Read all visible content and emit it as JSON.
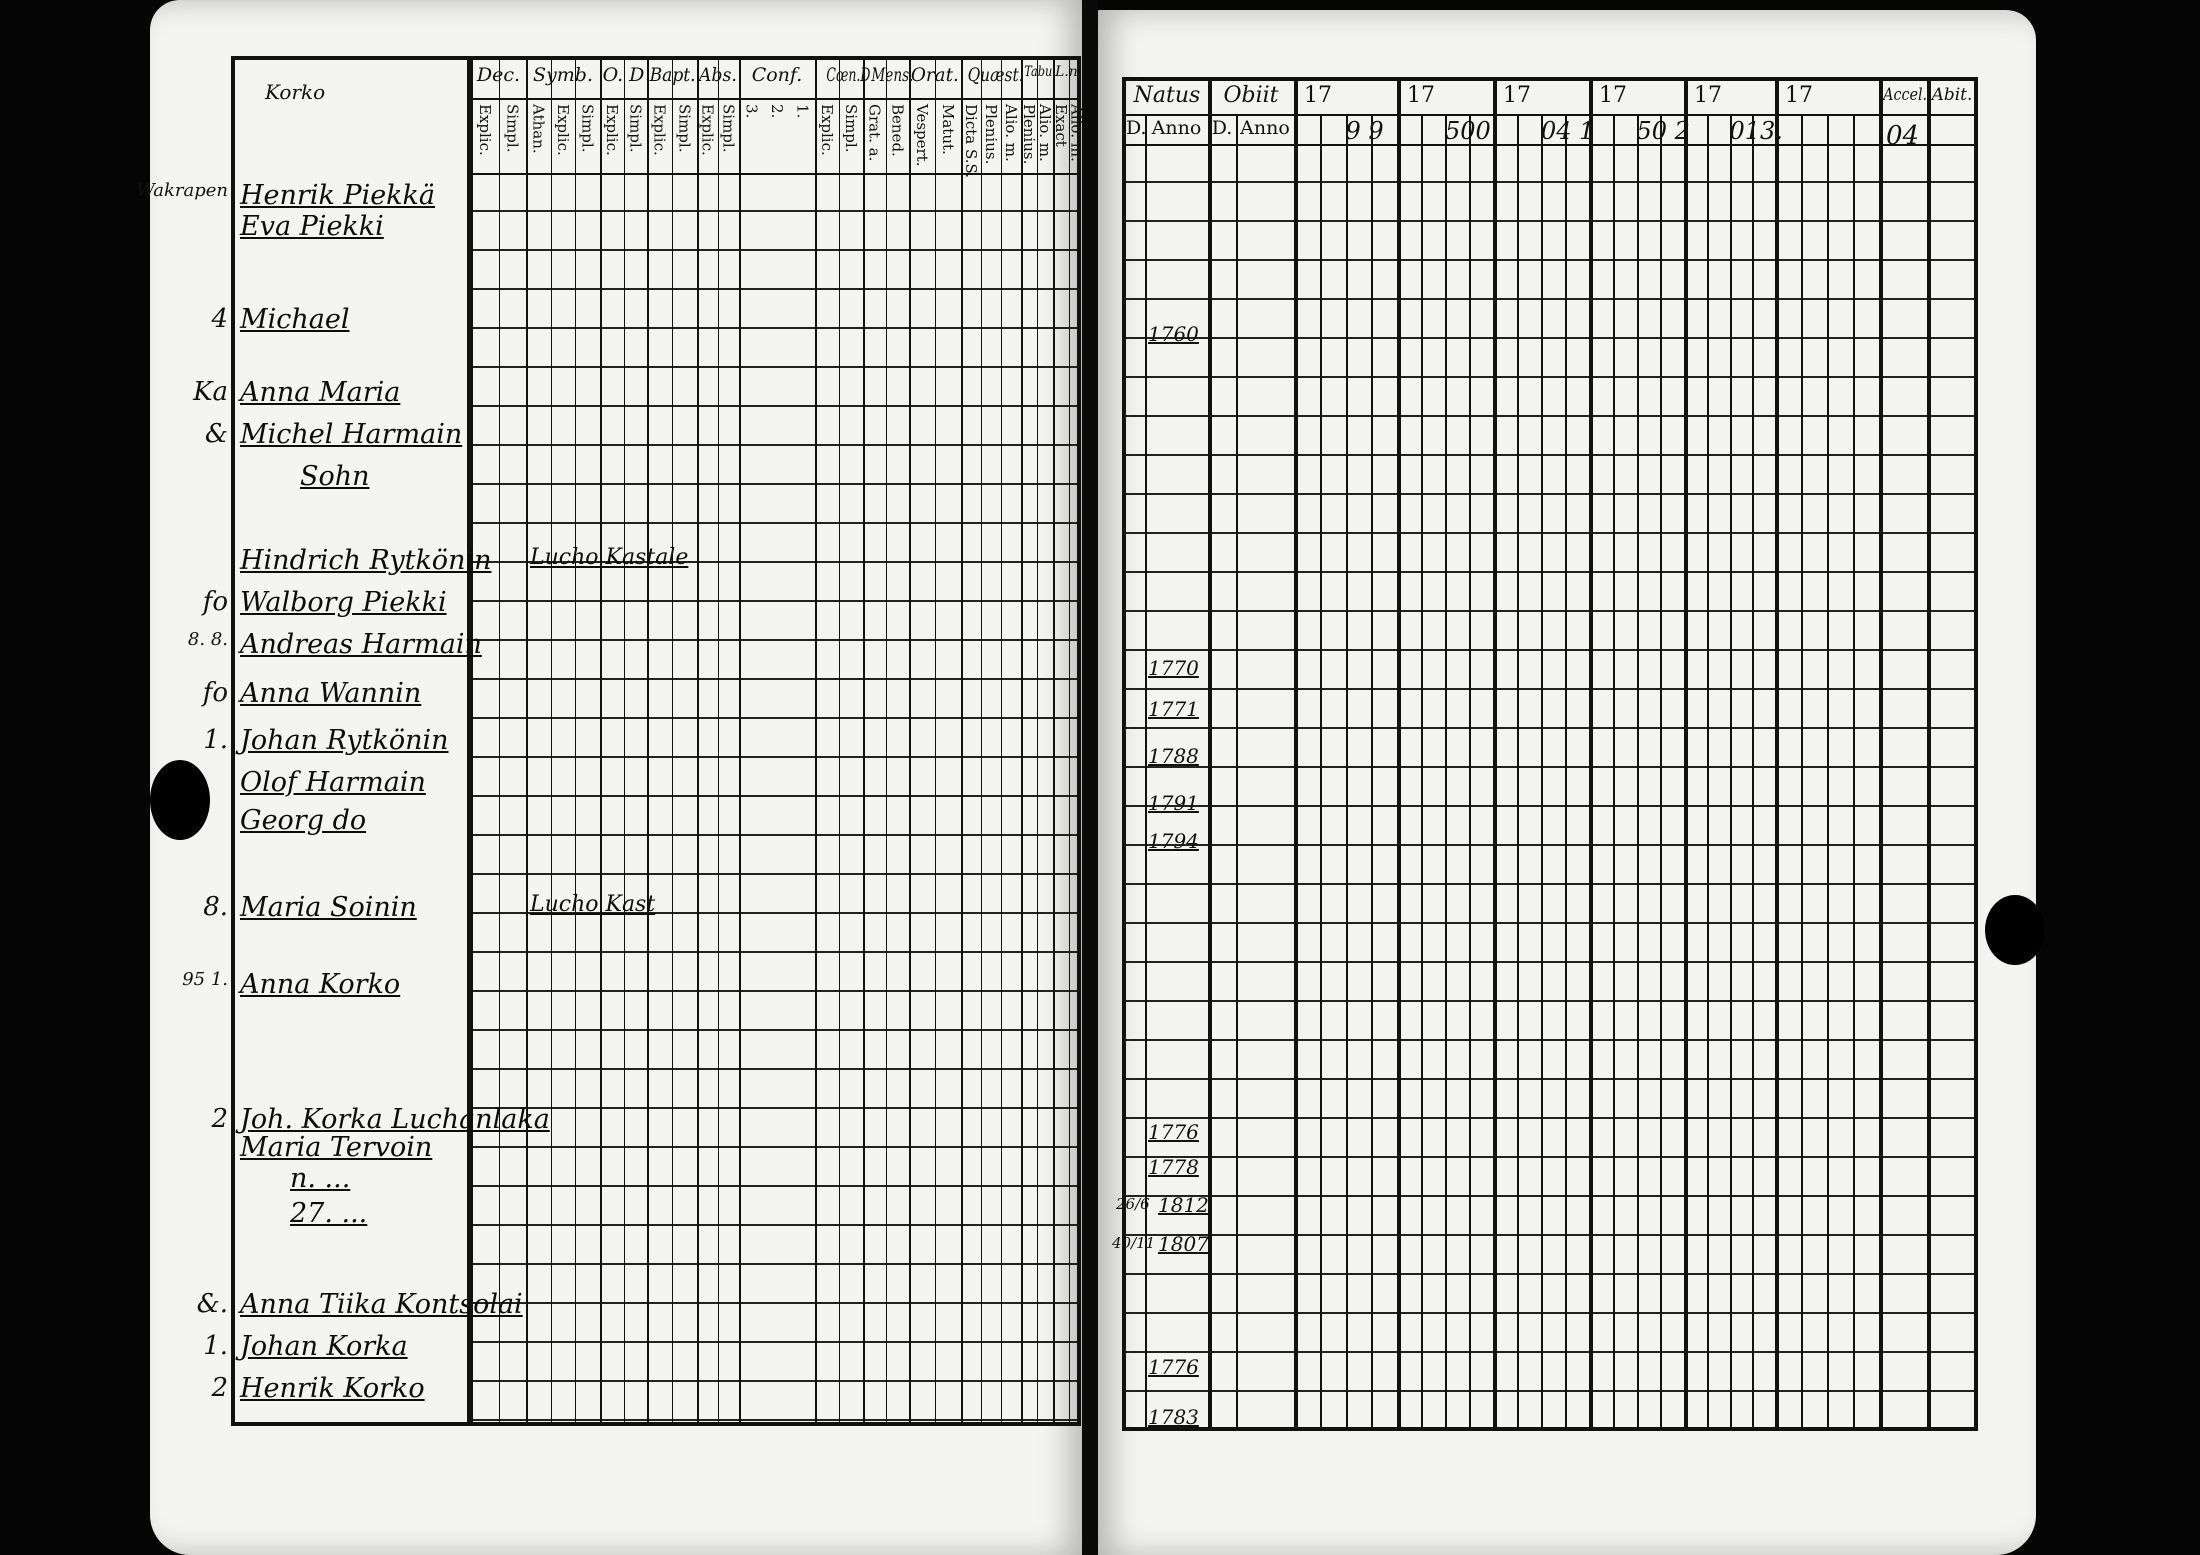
{
  "left_page": {
    "corner_note": "Korko",
    "headers": [
      {
        "label": "Dec.",
        "subs": [
          "Explic.",
          "Simpl."
        ]
      },
      {
        "label": "Symb.",
        "subs": [
          "Athan.",
          "Explic.",
          "Simpl."
        ]
      },
      {
        "label": "O. D",
        "subs": [
          "Explic.",
          "Simpl."
        ]
      },
      {
        "label": "Bapt.",
        "subs": [
          "Explic.",
          "Simpl."
        ]
      },
      {
        "label": "Abs.",
        "subs": [
          "Explic.",
          "Simpl."
        ]
      },
      {
        "label": "Conf.",
        "subs": [
          "3.",
          "2.",
          "1."
        ]
      },
      {
        "label": "Cœn.D",
        "subs": [
          "Explic.",
          "Simpl."
        ]
      },
      {
        "label": "Mens.",
        "subs": [
          "Grat. a.",
          "Bened."
        ]
      },
      {
        "label": "Orat.",
        "subs": [
          "Vespert.",
          "Matut."
        ]
      },
      {
        "label": "Quæst.",
        "subs": [
          "Dicta S.S.",
          "Plenius.",
          "Alio. m."
        ]
      },
      {
        "label": "Tabu",
        "subs": [
          "Plenius.",
          "Alio. m."
        ]
      },
      {
        "label": "L.n.",
        "subs": [
          "Exact",
          "Alio. m."
        ]
      }
    ],
    "entries": [
      {
        "margin": "Wakrapen",
        "name": "Henrik Piekkä"
      },
      {
        "margin": "",
        "name": "Eva Piekki"
      },
      {
        "margin": "4",
        "name": "Michael"
      },
      {
        "margin": "Ka",
        "name": "Anna Maria"
      },
      {
        "margin": "&",
        "name": "Michel Harmain"
      },
      {
        "margin": "",
        "name": "Sohn"
      },
      {
        "margin": "",
        "name": "Hindrich Rytkönin",
        "note": "Lucho Kastale"
      },
      {
        "margin": "fo",
        "name": "Walborg Piekki"
      },
      {
        "margin": "8. 8.",
        "name": "Andreas Harmain"
      },
      {
        "margin": "fo",
        "name": "Anna Wannin"
      },
      {
        "margin": "1.",
        "name": "Johan Rytkönin"
      },
      {
        "margin": "",
        "name": "Olof Harmain"
      },
      {
        "margin": "",
        "name": "Georg do"
      },
      {
        "margin": "8.",
        "name": "Maria Soinin",
        "note": "Lucho Kast"
      },
      {
        "margin": "95 1.",
        "name": "Anna Korko"
      },
      {
        "margin": "2",
        "name": "Joh. Korka Luchanlaka"
      },
      {
        "margin": "",
        "name": "Maria Tervoin"
      },
      {
        "margin": "",
        "name": "n. ..."
      },
      {
        "margin": "",
        "name": "27. ..."
      },
      {
        "margin": "&.",
        "name": "Anna Tiika Kontsolai"
      },
      {
        "margin": "1.",
        "name": "Johan Korka"
      },
      {
        "margin": "2",
        "name": "Henrik Korko"
      }
    ]
  },
  "right_page": {
    "headers": {
      "natus": "Natus",
      "natus_d": "D.",
      "natus_anno": "Anno",
      "obiit": "Obiit",
      "obiit_d": "D.",
      "obiit_anno": "Anno",
      "years": [
        "17",
        "17",
        "17",
        "17",
        "17",
        "17"
      ],
      "accel": "Accel.",
      "abit": "Abit."
    },
    "year_suffixes": [
      "9  9",
      "500",
      "04  1",
      "50  2",
      "013.",
      ""
    ],
    "accel_top": "04",
    "birth_years": [
      "1760",
      "1770",
      "1771",
      "1788",
      "1791",
      "1794",
      "1776",
      "1778",
      "1812",
      "1807",
      "1776",
      "1783"
    ],
    "obiit_day_marks": [
      "26/6",
      "40/11"
    ]
  }
}
